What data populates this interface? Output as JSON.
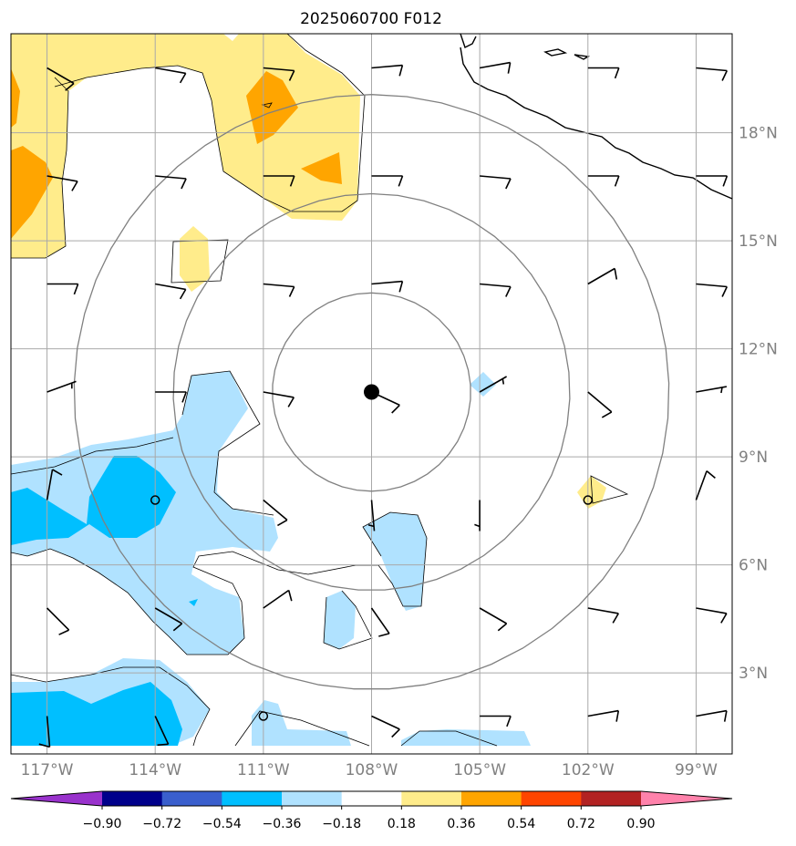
{
  "title": "2025060700 F012",
  "map": {
    "lon_range": [
      -118.0,
      -98.0
    ],
    "lat_range": [
      0.75,
      20.75
    ],
    "lon_ticks": [
      {
        "value": -117,
        "label": "117°W"
      },
      {
        "value": -114,
        "label": "114°W"
      },
      {
        "value": -111,
        "label": "111°W"
      },
      {
        "value": -108,
        "label": "108°W"
      },
      {
        "value": -105,
        "label": "105°W"
      },
      {
        "value": -102,
        "label": "102°W"
      },
      {
        "value": -99,
        "label": "99°W"
      }
    ],
    "lat_ticks": [
      {
        "value": 3,
        "label": "3°N"
      },
      {
        "value": 6,
        "label": "6°N"
      },
      {
        "value": 9,
        "label": "9°N"
      },
      {
        "value": 12,
        "label": "12°N"
      },
      {
        "value": 15,
        "label": "15°N"
      },
      {
        "value": 18,
        "label": "18°N"
      }
    ],
    "grid": true,
    "center": {
      "lon": -108.0,
      "lat": 10.8
    },
    "range_rings_deg": [
      2.75,
      5.5,
      8.25
    ],
    "label_color": "#808080"
  },
  "colorbar": {
    "levels": [
      -0.9,
      -0.72,
      -0.54,
      -0.36,
      -0.18,
      0.18,
      0.36,
      0.54,
      0.72,
      0.9
    ],
    "labels": [
      "−0.90",
      "−0.72",
      "−0.54",
      "−0.36",
      "−0.18",
      "0.18",
      "0.36",
      "0.54",
      "0.72",
      "0.90"
    ],
    "colors": [
      "#9932cc",
      "#00008b",
      "#3a5fcd",
      "#00bfff",
      "#b0e2ff",
      "#ffffff",
      "#ffec8b",
      "#ffa500",
      "#ff4500",
      "#b22222",
      "#ff82ab"
    ]
  },
  "barbs": {
    "lons": [
      -117,
      -114,
      -111,
      -108,
      -105,
      -102,
      -99
    ],
    "lats": [
      19.8,
      16.8,
      13.8,
      10.8,
      7.8,
      4.8,
      1.8
    ],
    "rows": [
      [
        [
          120,
          10
        ],
        [
          100,
          10
        ],
        [
          95,
          10
        ],
        [
          85,
          10
        ],
        [
          80,
          10
        ],
        [
          90,
          10
        ],
        [
          95,
          10
        ]
      ],
      [
        [
          100,
          10
        ],
        [
          95,
          10
        ],
        [
          90,
          10
        ],
        [
          90,
          10
        ],
        [
          95,
          10
        ],
        [
          90,
          10
        ],
        [
          90,
          10
        ]
      ],
      [
        [
          90,
          10
        ],
        [
          100,
          10
        ],
        [
          95,
          10
        ],
        [
          85,
          10
        ],
        [
          95,
          10
        ],
        [
          60,
          10
        ],
        [
          95,
          10
        ]
      ],
      [
        [
          70,
          5
        ],
        [
          90,
          10
        ],
        [
          100,
          10
        ],
        [
          115,
          10
        ],
        [
          60,
          5
        ],
        [
          130,
          10
        ],
        [
          80,
          5
        ]
      ],
      [
        [
          10,
          10
        ],
        [
          0,
          0
        ],
        [
          130,
          10
        ],
        [
          175,
          5
        ],
        [
          180,
          5
        ],
        [
          0,
          0
        ],
        [
          20,
          10
        ]
      ],
      [
        [
          135,
          10
        ],
        [
          120,
          10
        ],
        [
          55,
          10
        ],
        [
          145,
          10
        ],
        [
          120,
          10
        ],
        [
          100,
          10
        ],
        [
          100,
          10
        ]
      ],
      [
        [
          175,
          10
        ],
        [
          155,
          10
        ],
        [
          0,
          0
        ],
        [
          115,
          10
        ],
        [
          90,
          10
        ],
        [
          80,
          10
        ],
        [
          80,
          10
        ]
      ]
    ]
  },
  "track_point": {
    "lon": -108.0,
    "lat": 10.8
  }
}
